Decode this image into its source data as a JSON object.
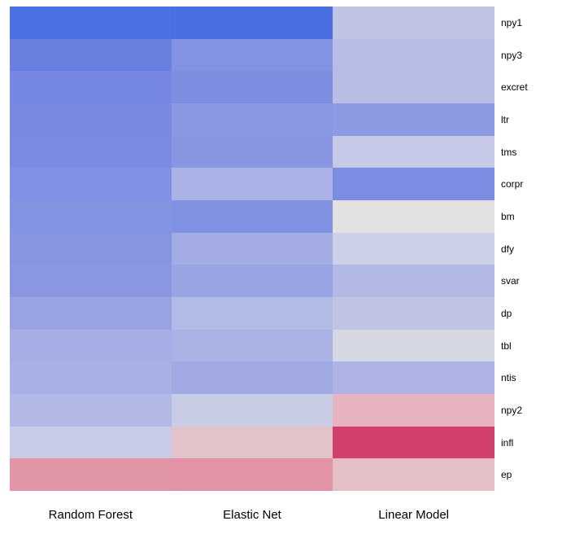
{
  "chart_data": {
    "type": "heatmap",
    "title": "",
    "xlabel": "",
    "ylabel": "",
    "legend_position": "none",
    "grid": false,
    "background_color": "#ffffff",
    "label_color": "#000000",
    "columns": [
      "Random Forest",
      "Elastic Net",
      "Linear Model"
    ],
    "rows": [
      "npy1",
      "npy3",
      "excret",
      "ltr",
      "tms",
      "corpr",
      "bm",
      "dfy",
      "svar",
      "dp",
      "tbl",
      "ntis",
      "npy2",
      "infl",
      "ep"
    ],
    "colorscale_extremes": {
      "strong_blue": "#4a70e1",
      "strong_red": "#d23f6c"
    },
    "cell_colors": [
      [
        "#4b71e2",
        "#4a6fe1",
        "#bfc3e3"
      ],
      [
        "#6a80e0",
        "#8492e2",
        "#b7bde5"
      ],
      [
        "#7587e0",
        "#7e8de0",
        "#b7bde5"
      ],
      [
        "#7a89e0",
        "#8a97e2",
        "#8d99e3"
      ],
      [
        "#7b8ae1",
        "#8895e1",
        "#c5c9e7"
      ],
      [
        "#8190e2",
        "#abb3e6",
        "#7b8ce2"
      ],
      [
        "#8493e2",
        "#8091e2",
        "#e2e0e0"
      ],
      [
        "#8894e2",
        "#a3ace3",
        "#ccd0e8"
      ],
      [
        "#8a96e2",
        "#99a4e2",
        "#b2b9e4"
      ],
      [
        "#99a2e2",
        "#b2bae6",
        "#bfc3e4"
      ],
      [
        "#a4ade4",
        "#aab2e4",
        "#d5d7e3"
      ],
      [
        "#a9b1e4",
        "#a0a9e2",
        "#adb4e4"
      ],
      [
        "#b3b9e6",
        "#c8cce4",
        "#e6b3bf"
      ],
      [
        "#c7cbe6",
        "#e3c3ca",
        "#d23f6c"
      ],
      [
        "#e295a4",
        "#e293a6",
        "#e4bfc6"
      ]
    ]
  }
}
